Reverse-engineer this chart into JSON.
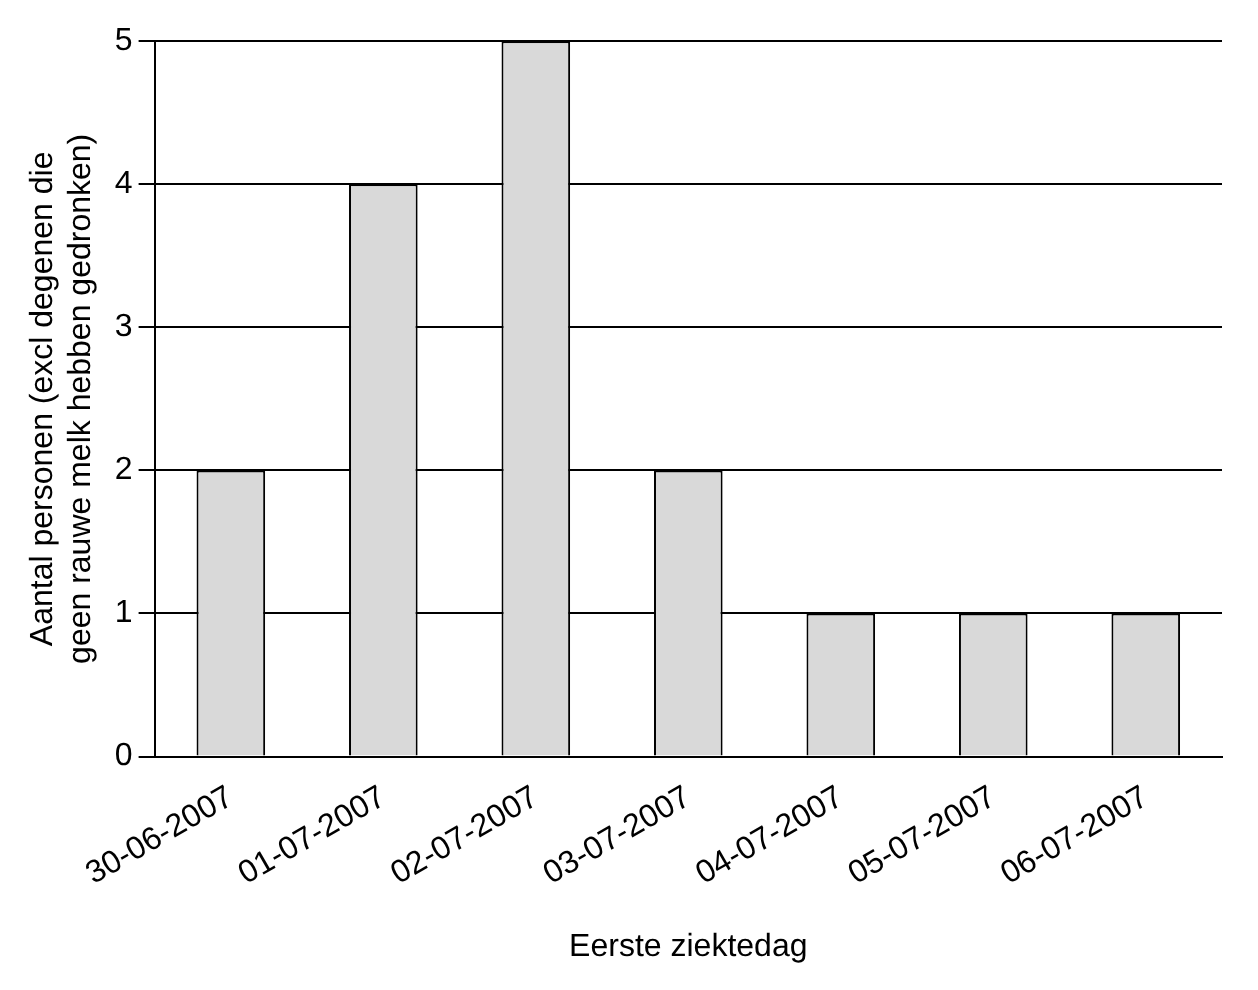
{
  "chart_data": {
    "type": "bar",
    "xlabel": "Eerste ziektedag",
    "ylabel": "Aantal personen (excl degenen die\ngeen rauwe melk hebben gedronken)",
    "categories": [
      "30-06-2007",
      "01-07-2007",
      "02-07-2007",
      "03-07-2007",
      "04-07-2007",
      "05-07-2007",
      "06-07-2007"
    ],
    "values": [
      2,
      4,
      5,
      2,
      1,
      1,
      1
    ],
    "color": "#d9d9d9",
    "ylim": [
      0,
      5
    ],
    "yticks": [
      0,
      1,
      2,
      3,
      4,
      5
    ],
    "grid": "y",
    "legend": false
  }
}
